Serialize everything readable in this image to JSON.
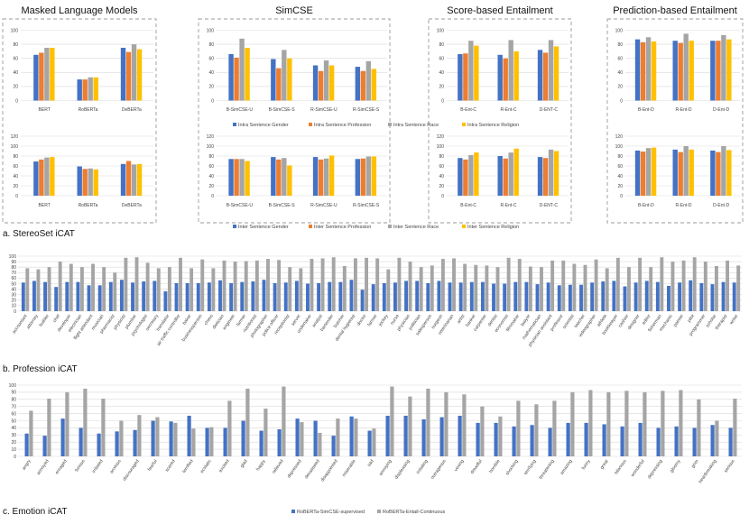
{
  "colors": {
    "blue": "#4472C4",
    "orange": "#ED7D31",
    "gray": "#A5A5A5",
    "yellow": "#FFC000",
    "grid": "#d9d9d9",
    "dash": "#9a9a9a"
  },
  "sections": {
    "a": "a. StereoSet iCAT",
    "b": "b. Profession iCAT",
    "c": "c. Emotion iCAT"
  },
  "chart_data": [
    {
      "id": "stereoset-intra",
      "type": "bar",
      "group_titles": [
        "Masked Language Models",
        "SimCSE",
        "Score-based Entailment",
        "Prediction-based Entailment"
      ],
      "ylim": [
        0,
        100
      ],
      "yticks": [
        0,
        20,
        40,
        60,
        80,
        100
      ],
      "groups": [
        {
          "categories": [
            "BERT",
            "RoBERTa",
            "DeBERTa"
          ],
          "values": [
            [
              65,
              68,
              75,
              75
            ],
            [
              30,
              30,
              33,
              33
            ],
            [
              75,
              69,
              80,
              73
            ]
          ]
        },
        {
          "categories": [
            "B-SimCSE-U",
            "B-SimCSE-S",
            "R-SimCSE-U",
            "R-SimCSE-S"
          ],
          "values": [
            [
              66,
              61,
              88,
              75
            ],
            [
              59,
              46,
              72,
              60
            ],
            [
              50,
              42,
              57,
              50
            ],
            [
              48,
              42,
              56,
              45
            ]
          ]
        },
        {
          "categories": [
            "B-Ent-C",
            "R-Ent-C",
            "D-ENT-C"
          ],
          "values": [
            [
              66,
              67,
              85,
              78
            ],
            [
              65,
              60,
              86,
              70
            ],
            [
              72,
              68,
              86,
              77
            ]
          ]
        },
        {
          "categories": [
            "B-Ent-D",
            "R-Ent-D",
            "D-Ent-D"
          ],
          "values": [
            [
              87,
              83,
              90,
              84
            ],
            [
              85,
              82,
              95,
              85
            ],
            [
              85,
              85,
              93,
              87
            ]
          ]
        }
      ],
      "series": [
        {
          "name": "Intra Sentence Gender"
        },
        {
          "name": "Intra Sentence Profession"
        },
        {
          "name": "Intra Sentence Race"
        },
        {
          "name": "Intra Sentence Religion"
        }
      ]
    },
    {
      "id": "stereoset-inter",
      "type": "bar",
      "ylim": [
        0,
        120
      ],
      "yticks": [
        0,
        20,
        40,
        60,
        80,
        100,
        120
      ],
      "groups": [
        {
          "categories": [
            "BERT",
            "RoBERTa",
            "DeBERTa"
          ],
          "values": [
            [
              69,
              73,
              77,
              78
            ],
            [
              59,
              54,
              55,
              53
            ],
            [
              64,
              70,
              63,
              64
            ]
          ]
        },
        {
          "categories": [
            "B-SimCSE-U",
            "B-SimCSE-S",
            "R-SimCSE-U",
            "R-SimCSE-S"
          ],
          "values": [
            [
              74,
              74,
              74,
              70
            ],
            [
              78,
              73,
              76,
              61
            ],
            [
              78,
              73,
              75,
              81
            ],
            [
              74,
              75,
              79,
              79
            ]
          ]
        },
        {
          "categories": [
            "B-Ent-C",
            "R-Ent-C",
            "D-ENT-C"
          ],
          "values": [
            [
              76,
              73,
              82,
              87
            ],
            [
              80,
              75,
              87,
              95
            ],
            [
              78,
              76,
              93,
              90
            ]
          ]
        },
        {
          "categories": [
            "B-Ent-D",
            "R-Ent-D",
            "D-Ent-D"
          ],
          "values": [
            [
              91,
              89,
              96,
              97
            ],
            [
              93,
              88,
              100,
              93
            ],
            [
              91,
              88,
              100,
              92
            ]
          ]
        }
      ],
      "series": [
        {
          "name": "Inter Sentence Gender"
        },
        {
          "name": "Inter Sentence Profession"
        },
        {
          "name": "Inter Sentence Race"
        },
        {
          "name": "Inter Sentence Religion"
        }
      ]
    },
    {
      "id": "profession",
      "type": "bar",
      "ylim": [
        0,
        100
      ],
      "yticks": [
        0,
        10,
        20,
        30,
        40,
        50,
        60,
        70,
        80,
        90,
        100
      ],
      "categories": [
        "accountant",
        "attorney",
        "builder",
        "chef",
        "developer",
        "electrician",
        "flight attendant",
        "musician",
        "pharmacist",
        "physicist",
        "plumber",
        "psychologist",
        "secretary",
        "translator",
        "air traffic controller",
        "baker",
        "businessperson",
        "chess",
        "dietician",
        "engineer",
        "farmer",
        "nutritionist",
        "photographer",
        "police officer",
        "receptionist",
        "server",
        "undertaker",
        "analyst",
        "bartender",
        "butcher",
        "dental hygienist",
        "doctor",
        "farmer",
        "jockey",
        "nurse",
        "physician",
        "politician",
        "salesperson",
        "surgeon",
        "veterinarian",
        "artist",
        "banker",
        "carpenter",
        "dentist",
        "economist",
        "filmmaker",
        "lawyer",
        "mathematician",
        "physician assistant",
        "professor",
        "scientist",
        "teacher",
        "videographer",
        "athlete",
        "bookkeeper",
        "cashier",
        "designer",
        "editor",
        "fisherman",
        "mechanic",
        "painter",
        "pilot",
        "programmer",
        "scholar",
        "therapist",
        "writer"
      ],
      "series": [
        {
          "name": "",
          "values": [
            52,
            55,
            53,
            44,
            53,
            53,
            47,
            47,
            53,
            57,
            52,
            54,
            55,
            36,
            51,
            51,
            51,
            52,
            56,
            51,
            53,
            54,
            57,
            51,
            52,
            55,
            50,
            51,
            53,
            53,
            57,
            39,
            49,
            51,
            52,
            55,
            55,
            51,
            55,
            52,
            52,
            53,
            53,
            50,
            50,
            53,
            53,
            49,
            52,
            47,
            48,
            48,
            52,
            54,
            55,
            45,
            52,
            55,
            53,
            46,
            52,
            56,
            51,
            49,
            53,
            52
          ]
        },
        {
          "name": "",
          "values": [
            78,
            76,
            80,
            90,
            86,
            80,
            86,
            80,
            70,
            97,
            98,
            88,
            78,
            80,
            97,
            78,
            94,
            78,
            92,
            90,
            91,
            92,
            95,
            93,
            80,
            78,
            95,
            96,
            98,
            82,
            96,
            97,
            96,
            76,
            97,
            90,
            80,
            83,
            95,
            96,
            86,
            84,
            83,
            80,
            97,
            95,
            81,
            80,
            92,
            92,
            86,
            84,
            94,
            78,
            97,
            80,
            97,
            80,
            98,
            90,
            92,
            98,
            90,
            82,
            92,
            83
          ]
        }
      ]
    },
    {
      "id": "emotion",
      "type": "bar",
      "ylim": [
        0,
        100
      ],
      "yticks": [
        0,
        10,
        20,
        30,
        40,
        50,
        60,
        70,
        80,
        90,
        100
      ],
      "categories": [
        "angry",
        "annoyed",
        "enraged",
        "furious",
        "irritated",
        "anxious",
        "discouraged",
        "fearful",
        "scared",
        "terrified",
        "ecstatic",
        "excited",
        "glad",
        "happy",
        "relieved",
        "depressed",
        "devastated",
        "disappointed",
        "miserable",
        "sad",
        "annoying",
        "displeasing",
        "irritating",
        "outrageous",
        "vexing",
        "dreadful",
        "horrible",
        "shocking",
        "terrifying",
        "threatening",
        "amazing",
        "funny",
        "great",
        "hilarious",
        "wonderful",
        "depressing",
        "gloomy",
        "grim",
        "heartbreaking",
        "serious"
      ],
      "series": [
        {
          "name": "RoBERTa-SimCSE-supervised",
          "values": [
            32,
            29,
            53,
            40,
            32,
            35,
            37,
            50,
            49,
            57,
            40,
            40,
            50,
            36,
            38,
            53,
            50,
            29,
            56,
            36,
            57,
            57,
            52,
            55,
            57,
            47,
            47,
            42,
            44,
            40,
            47,
            47,
            45,
            42,
            47,
            40,
            42,
            40,
            44,
            40
          ]
        },
        {
          "name": "RoBERTa-Entail-Continuous",
          "values": [
            64,
            81,
            90,
            95,
            81,
            50,
            58,
            55,
            47,
            39,
            41,
            78,
            95,
            67,
            98,
            48,
            33,
            53,
            53,
            39,
            98,
            84,
            95,
            90,
            87,
            70,
            56,
            78,
            73,
            78,
            90,
            93,
            90,
            92,
            90,
            92,
            93,
            80,
            50,
            81
          ]
        }
      ]
    }
  ]
}
